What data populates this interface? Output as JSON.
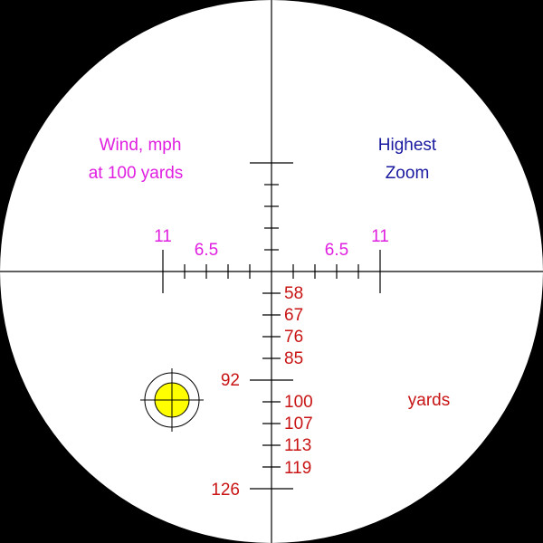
{
  "wind_caption": [
    "Wind, mph",
    "at 100 yards"
  ],
  "zoom_caption": [
    "Highest",
    "Zoom"
  ],
  "wind_labels": {
    "left": [
      "11",
      "6.5"
    ],
    "right": [
      "6.5",
      "11"
    ]
  },
  "range_labels": [
    "58",
    "67",
    "76",
    "85",
    "92",
    "100",
    "107",
    "113",
    "119",
    "126"
  ],
  "range_unit": "yards"
}
